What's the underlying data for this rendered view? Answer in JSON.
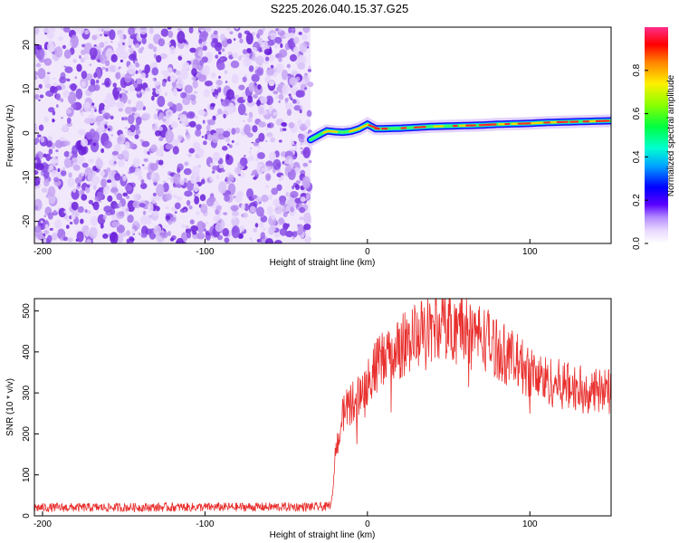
{
  "title": "S225.2026.040.15.37.G25",
  "chart_data": [
    {
      "type": "heatmap",
      "xlabel": "Height of straight line (km)",
      "ylabel": "Frequency (Hz)",
      "xlim": [
        -205,
        150
      ],
      "ylim": [
        -25,
        24
      ],
      "xticks": [
        -200,
        -100,
        0,
        100
      ],
      "yticks": [
        -20,
        -10,
        0,
        10,
        20
      ],
      "noise_region_x": [
        -205,
        -35
      ],
      "ridge_x": [
        -35,
        -30,
        -25,
        -20,
        -15,
        -10,
        -5,
        0,
        5,
        10,
        20,
        30,
        40,
        50,
        60,
        70,
        80,
        90,
        100,
        110,
        120,
        130,
        140,
        150
      ],
      "ridge_freq": [
        -1.5,
        -0.5,
        0.5,
        0.3,
        0.2,
        0.4,
        1.0,
        2.0,
        1.0,
        1.0,
        1.1,
        1.3,
        1.5,
        1.6,
        1.7,
        1.8,
        2.0,
        2.1,
        2.2,
        2.4,
        2.5,
        2.6,
        2.7,
        2.8
      ],
      "colorbar": {
        "label": "Normalized spectral amplitude",
        "ticks": [
          "0.0",
          "0.2",
          "0.4",
          "0.6",
          "0.8"
        ],
        "range": [
          0,
          1
        ]
      }
    },
    {
      "type": "line",
      "xlabel": "Height of straight line (km)",
      "ylabel": "SNR (10 * v/v)",
      "xlim": [
        -205,
        150
      ],
      "ylim": [
        0,
        530
      ],
      "xticks": [
        -200,
        -100,
        0,
        100
      ],
      "yticks": [
        0,
        100,
        200,
        300,
        400,
        500
      ],
      "color": "#e8302e",
      "envelope_x": [
        -205,
        -25,
        -22,
        -20,
        -15,
        -5,
        0,
        5,
        10,
        20,
        30,
        40,
        50,
        60,
        70,
        80,
        90,
        100,
        110,
        120,
        130,
        140,
        150
      ],
      "envelope_snr": [
        20,
        22,
        30,
        150,
        250,
        300,
        330,
        360,
        380,
        410,
        440,
        460,
        470,
        460,
        440,
        410,
        380,
        350,
        330,
        320,
        310,
        305,
        300
      ]
    }
  ],
  "colors": {
    "axis": "#000000",
    "noise_purple": "#8a2be2",
    "ridge_red": "#ff2a2a"
  }
}
